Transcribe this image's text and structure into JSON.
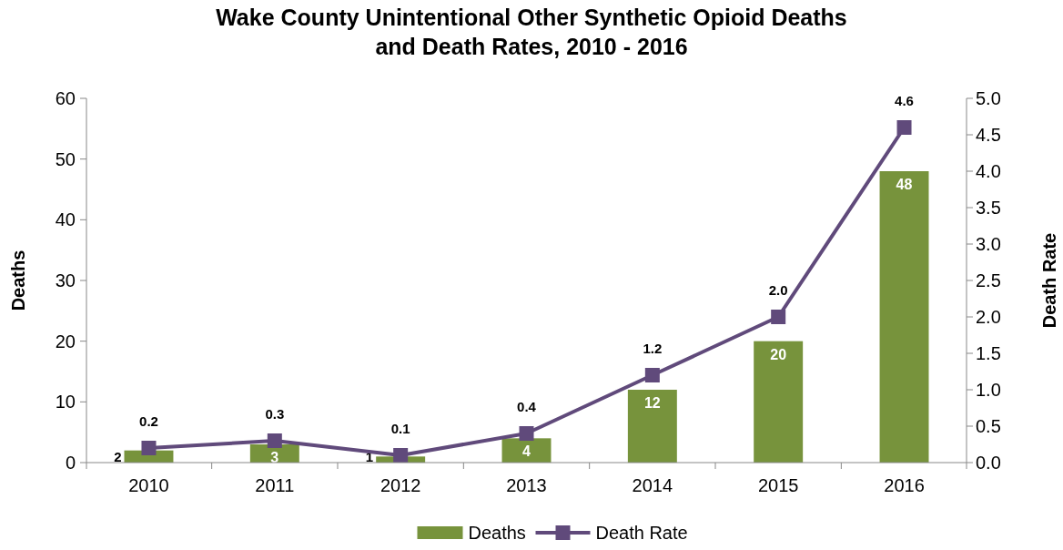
{
  "chart_data": {
    "type": "bar",
    "title": "Wake County Unintentional Other Synthetic Opioid Deaths\nand Death Rates, 2010 - 2016",
    "ylabel": "Deaths",
    "y2label": "Death Rate",
    "categories": [
      "2010",
      "2011",
      "2012",
      "2013",
      "2014",
      "2015",
      "2016"
    ],
    "series": [
      {
        "name": "Deaths",
        "color": "#77933c",
        "values": [
          2,
          3,
          1,
          4,
          12,
          20,
          48
        ]
      },
      {
        "name": "Death Rate",
        "type": "line",
        "axis": "y2",
        "color": "#604a7b",
        "marker": "square",
        "values": [
          0.2,
          0.3,
          0.1,
          0.4,
          1.2,
          2.0,
          4.6
        ],
        "value_labels": [
          "0.2",
          "0.3",
          "0.1",
          "0.4",
          "1.2",
          "2.0",
          "4.6"
        ]
      }
    ],
    "ylim": [
      0,
      60
    ],
    "yticks": [
      0,
      10,
      20,
      30,
      40,
      50,
      60
    ],
    "y2lim": [
      0,
      5
    ],
    "y2ticks": [
      {
        "value": 0,
        "label": "0.0"
      },
      {
        "value": 0.5,
        "label": "0.5"
      },
      {
        "value": 1,
        "label": "1.0"
      },
      {
        "value": 1.5,
        "label": "1.5"
      },
      {
        "value": 2,
        "label": "2.0"
      },
      {
        "value": 2.5,
        "label": "2.5"
      },
      {
        "value": 3,
        "label": "3.0"
      },
      {
        "value": 3.5,
        "label": "3.5"
      },
      {
        "value": 4,
        "label": "4.0"
      },
      {
        "value": 4.5,
        "label": "4.5"
      },
      {
        "value": 5,
        "label": "5.0"
      }
    ],
    "data_labels": true,
    "grid": false,
    "legend": "bottom"
  }
}
